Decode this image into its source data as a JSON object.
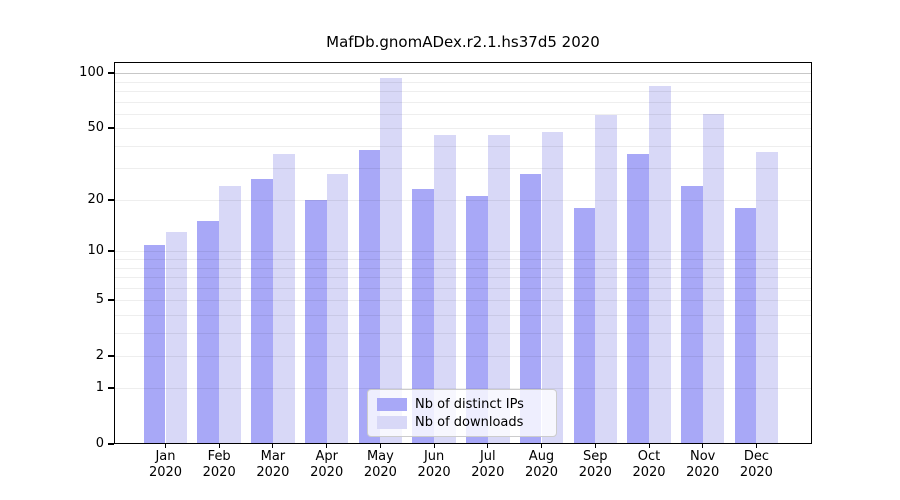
{
  "figure": {
    "title": "MafDb.gnomADex.r2.1.hs37d5 2020"
  },
  "chart_data": {
    "type": "bar",
    "title": "MafDb.gnomADex.r2.1.hs37d5 2020",
    "xlabel": "",
    "ylabel": "",
    "yscale": "log1p",
    "ylim": [
      0,
      115
    ],
    "grid": "horizontal",
    "legend_position": "lower-center",
    "yticks": [
      100,
      50,
      20,
      10,
      5,
      2,
      1,
      0
    ],
    "gridline_values": [
      1,
      2,
      3,
      4,
      5,
      6,
      7,
      8,
      9,
      10,
      20,
      30,
      40,
      50,
      60,
      70,
      80,
      90,
      100
    ],
    "categories": [
      {
        "month": "Jan",
        "year": "2020"
      },
      {
        "month": "Feb",
        "year": "2020"
      },
      {
        "month": "Mar",
        "year": "2020"
      },
      {
        "month": "Apr",
        "year": "2020"
      },
      {
        "month": "May",
        "year": "2020"
      },
      {
        "month": "Jun",
        "year": "2020"
      },
      {
        "month": "Jul",
        "year": "2020"
      },
      {
        "month": "Aug",
        "year": "2020"
      },
      {
        "month": "Sep",
        "year": "2020"
      },
      {
        "month": "Oct",
        "year": "2020"
      },
      {
        "month": "Nov",
        "year": "2020"
      },
      {
        "month": "Dec",
        "year": "2020"
      }
    ],
    "series": [
      {
        "name": "Nb of distinct IPs",
        "color": "#a8a8f7",
        "values": [
          11,
          15,
          26,
          20,
          38,
          23,
          21,
          28,
          18,
          36,
          24,
          18
        ]
      },
      {
        "name": "Nb of downloads",
        "color": "#d8d8f7",
        "values": [
          13,
          24,
          36,
          28,
          94,
          46,
          46,
          48,
          59,
          85,
          60,
          37
        ]
      }
    ]
  }
}
